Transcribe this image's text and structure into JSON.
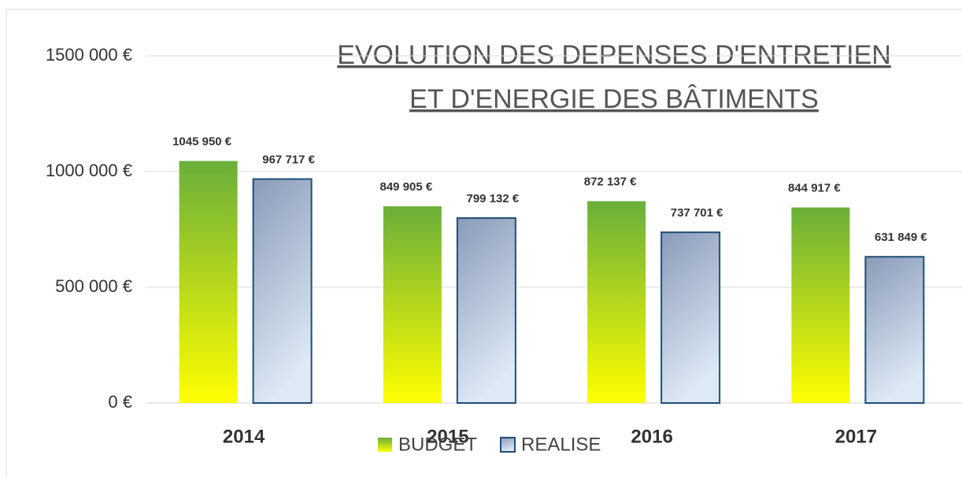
{
  "chart_data": {
    "type": "bar",
    "title": [
      "EVOLUTION DES DEPENSES D'ENTRETIEN",
      "ET D'ENERGIE DES BÂTIMENTS"
    ],
    "categories": [
      "2014",
      "2015",
      "2016",
      "2017"
    ],
    "series": [
      {
        "name": "BUDGET",
        "color": "#6aaf3a",
        "values": [
          1045950,
          849905,
          872137,
          844917
        ],
        "value_labels": [
          "1045 950 €",
          "849 905 €",
          "872 137 €",
          "844 917 €"
        ]
      },
      {
        "name": "REALISE",
        "color": "#8a9bb8",
        "values": [
          967717,
          799132,
          737701,
          631849
        ],
        "value_labels": [
          "967 717 €",
          "799 132 €",
          "737 701 €",
          "631 849 €"
        ]
      }
    ],
    "ylim": [
      0,
      1500000
    ],
    "yticks": [
      {
        "value": 0,
        "label": "0 €"
      },
      {
        "value": 500000,
        "label": "500 000 €"
      },
      {
        "value": 1000000,
        "label": "1000 000 €"
      },
      {
        "value": 1500000,
        "label": "1500 000 €"
      }
    ],
    "grid": true,
    "legend": "bottom"
  }
}
